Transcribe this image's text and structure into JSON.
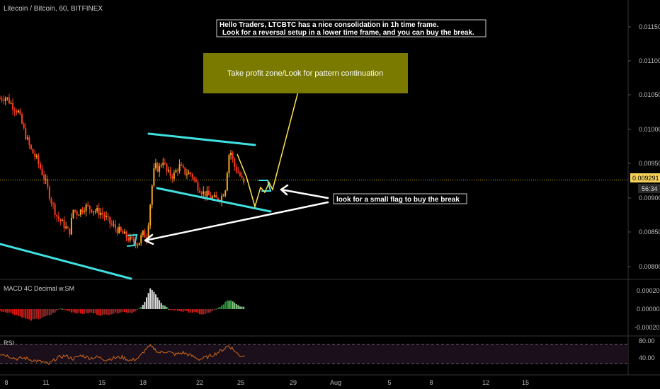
{
  "header": {
    "symbol_title": "Litecoin / Bitcoin, 60, BITFINEX"
  },
  "annotations": {
    "note_line1": "Hello Traders, LTCBTC has a nice consolidation in 1h time frame.",
    "note_line2": "Look for a reversal setup in a lower time frame, and you can buy the break.",
    "take_profit": "Take profit zone/Look for pattern continuation",
    "flag_hint": "look for a small flag to buy the break"
  },
  "price_scale": {
    "ticks": [
      "0.011500",
      "0.011000",
      "0.010500",
      "0.010000",
      "0.009500",
      "0.009000",
      "0.008500",
      "0.008000"
    ],
    "current_price": "0.009291",
    "countdown": "56:34"
  },
  "macd_panel": {
    "title": "MACD 4C Decimal w.SM",
    "ticks": [
      "0.00020",
      "0.00000",
      "-0.00020"
    ]
  },
  "rsi_panel": {
    "title": "RSI",
    "ticks": [
      "80.00",
      "40.00"
    ]
  },
  "time_axis": {
    "labels": [
      "8",
      "11",
      "15",
      "18",
      "22",
      "25",
      "29",
      "Aug",
      "5",
      "8",
      "12",
      "15"
    ]
  },
  "colors": {
    "up_candle": "#f5a623",
    "down_candle": "#ff3b1f",
    "trendline": "#40e0e0",
    "projection": "#ffe24a",
    "tp_zone": "#7a7a00",
    "rsi_line": "#d2691e",
    "rsi_band": "#1a0f1a",
    "macd_green_strong": "#1f9e2f",
    "macd_green_light": "#8fcf8f",
    "macd_red_strong": "#e3140f",
    "macd_red_light": "#8b2a2a",
    "current_price_line": "#e0c000"
  },
  "chart_data": {
    "type": "candlestick",
    "symbol": "Litecoin / Bitcoin",
    "interval": "60",
    "exchange": "BITFINEX",
    "ylim": [
      0.00785,
      0.01175
    ],
    "x_tick_labels": [
      "8",
      "11",
      "15",
      "18",
      "22",
      "25",
      "29",
      "Aug",
      "5",
      "8",
      "12",
      "15"
    ],
    "price_path": [
      [
        0,
        0.0105
      ],
      [
        3,
        0.01052
      ],
      [
        6,
        0.0104
      ],
      [
        9,
        0.0103
      ],
      [
        12,
        0.01
      ],
      [
        15,
        0.00975
      ],
      [
        18,
        0.0096
      ],
      [
        22,
        0.0093
      ],
      [
        25,
        0.009
      ],
      [
        28,
        0.00875
      ],
      [
        32,
        0.0086
      ],
      [
        34,
        0.0085
      ],
      [
        36,
        0.00885
      ],
      [
        38,
        0.0088
      ],
      [
        42,
        0.0089
      ],
      [
        46,
        0.00885
      ],
      [
        50,
        0.0088
      ],
      [
        55,
        0.00862
      ],
      [
        60,
        0.0085
      ],
      [
        64,
        0.0084
      ],
      [
        68,
        0.00835
      ],
      [
        70,
        0.0085
      ],
      [
        72,
        0.00845
      ],
      [
        73,
        0.0087
      ],
      [
        74,
        0.009
      ],
      [
        75,
        0.0093
      ],
      [
        76,
        0.0095
      ],
      [
        78,
        0.00945
      ],
      [
        80,
        0.0096
      ],
      [
        82,
        0.0094
      ],
      [
        85,
        0.00935
      ],
      [
        88,
        0.0095
      ],
      [
        91,
        0.0094
      ],
      [
        94,
        0.00938
      ],
      [
        97,
        0.0092
      ],
      [
        100,
        0.0091
      ],
      [
        103,
        0.00905
      ],
      [
        106,
        0.009
      ],
      [
        109,
        0.00905
      ],
      [
        111,
        0.0092
      ],
      [
        112,
        0.0096
      ],
      [
        113,
        0.00975
      ],
      [
        115,
        0.0095
      ],
      [
        118,
        0.00935
      ],
      [
        120,
        0.0092
      ]
    ],
    "current_price": 0.009291,
    "macd_histogram": [
      [
        0,
        -2e-05
      ],
      [
        5,
        -4e-05
      ],
      [
        10,
        -8e-05
      ],
      [
        15,
        -0.00012
      ],
      [
        20,
        -0.0001
      ],
      [
        25,
        -6e-05
      ],
      [
        30,
        1e-05
      ],
      [
        35,
        -3e-05
      ],
      [
        40,
        -5e-05
      ],
      [
        45,
        -4e-05
      ],
      [
        50,
        -7e-05
      ],
      [
        55,
        -5e-05
      ],
      [
        60,
        -3e-05
      ],
      [
        65,
        -4e-05
      ],
      [
        70,
        3e-05
      ],
      [
        72,
        0.00012
      ],
      [
        74,
        0.00023
      ],
      [
        76,
        0.00018
      ],
      [
        78,
        0.0001
      ],
      [
        80,
        4e-05
      ],
      [
        84,
        -1e-05
      ],
      [
        88,
        -2e-05
      ],
      [
        92,
        -3e-05
      ],
      [
        96,
        -4e-05
      ],
      [
        100,
        -6e-05
      ],
      [
        104,
        -3e-05
      ],
      [
        108,
        2e-05
      ],
      [
        111,
        8e-05
      ],
      [
        113,
        0.0001
      ],
      [
        116,
        6e-05
      ],
      [
        118,
        3e-05
      ]
    ],
    "macd_ylim": [
      -0.00025,
      0.00028
    ],
    "rsi": [
      [
        0,
        60
      ],
      [
        4,
        55
      ],
      [
        8,
        48
      ],
      [
        12,
        50
      ],
      [
        16,
        45
      ],
      [
        20,
        42
      ],
      [
        24,
        36
      ],
      [
        28,
        50
      ],
      [
        32,
        55
      ],
      [
        36,
        48
      ],
      [
        40,
        56
      ],
      [
        44,
        50
      ],
      [
        48,
        52
      ],
      [
        52,
        46
      ],
      [
        56,
        50
      ],
      [
        60,
        52
      ],
      [
        64,
        44
      ],
      [
        68,
        50
      ],
      [
        70,
        60
      ],
      [
        72,
        72
      ],
      [
        74,
        76
      ],
      [
        76,
        70
      ],
      [
        78,
        62
      ],
      [
        82,
        65
      ],
      [
        86,
        58
      ],
      [
        90,
        62
      ],
      [
        94,
        55
      ],
      [
        98,
        47
      ],
      [
        102,
        52
      ],
      [
        106,
        60
      ],
      [
        110,
        70
      ],
      [
        112,
        78
      ],
      [
        114,
        72
      ],
      [
        116,
        62
      ],
      [
        118,
        55
      ]
    ],
    "rsi_ylim": [
      15,
      95
    ],
    "rsi_levels": [
      70,
      30
    ]
  }
}
